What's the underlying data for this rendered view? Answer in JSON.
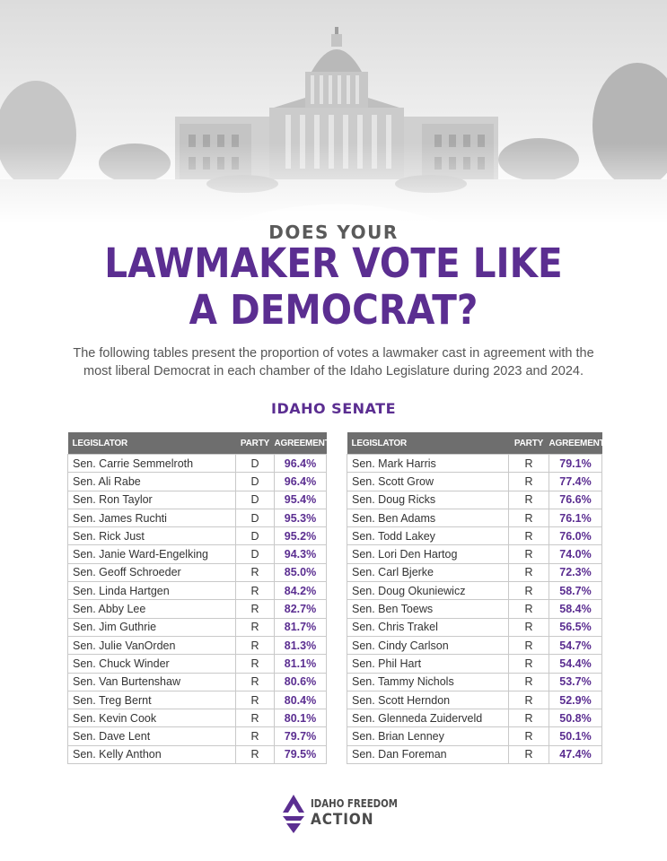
{
  "hero": {
    "image": "capitol-building-grayscale-photo"
  },
  "kicker": "DOES YOUR",
  "headline_lines": [
    "LAWMAKER VOTE LIKE",
    "A DEMOCRAT?"
  ],
  "intro_lines": [
    "The following tables present the proportion of votes a lawmaker cast in agreement with the",
    "most liberal Democrat in each chamber of the Idaho Legislature during 2023 and 2024."
  ],
  "chamber_title": "IDAHO SENATE",
  "colors": {
    "accent": "#5b2e91",
    "header_bg": "#6e6e6e",
    "text": "#333333"
  },
  "table_headers": {
    "legislator": "LEGISLATOR",
    "party": "PARTY",
    "agreement": "AGREEMENT"
  },
  "senate_left": [
    {
      "name": "Sen. Carrie Semmelroth",
      "party": "D",
      "agreement": "96.4%"
    },
    {
      "name": "Sen. Ali Rabe",
      "party": "D",
      "agreement": "96.4%"
    },
    {
      "name": "Sen. Ron Taylor",
      "party": "D",
      "agreement": "95.4%"
    },
    {
      "name": "Sen. James Ruchti",
      "party": "D",
      "agreement": "95.3%"
    },
    {
      "name": "Sen. Rick Just",
      "party": "D",
      "agreement": "95.2%"
    },
    {
      "name": "Sen. Janie Ward-Engelking",
      "party": "D",
      "agreement": "94.3%"
    },
    {
      "name": "Sen. Geoff Schroeder",
      "party": "R",
      "agreement": "85.0%"
    },
    {
      "name": "Sen. Linda Hartgen",
      "party": "R",
      "agreement": "84.2%"
    },
    {
      "name": "Sen. Abby Lee",
      "party": "R",
      "agreement": "82.7%"
    },
    {
      "name": "Sen. Jim Guthrie",
      "party": "R",
      "agreement": "81.7%"
    },
    {
      "name": "Sen. Julie VanOrden",
      "party": "R",
      "agreement": "81.3%"
    },
    {
      "name": "Sen. Chuck Winder",
      "party": "R",
      "agreement": "81.1%"
    },
    {
      "name": "Sen. Van Burtenshaw",
      "party": "R",
      "agreement": "80.6%"
    },
    {
      "name": "Sen. Treg Bernt",
      "party": "R",
      "agreement": "80.4%"
    },
    {
      "name": "Sen. Kevin Cook",
      "party": "R",
      "agreement": "80.1%"
    },
    {
      "name": "Sen. Dave Lent",
      "party": "R",
      "agreement": "79.7%"
    },
    {
      "name": "Sen. Kelly Anthon",
      "party": "R",
      "agreement": "79.5%"
    }
  ],
  "senate_right": [
    {
      "name": "Sen. Mark Harris",
      "party": "R",
      "agreement": "79.1%"
    },
    {
      "name": "Sen. Scott Grow",
      "party": "R",
      "agreement": "77.4%"
    },
    {
      "name": "Sen. Doug Ricks",
      "party": "R",
      "agreement": "76.6%"
    },
    {
      "name": "Sen. Ben Adams",
      "party": "R",
      "agreement": "76.1%"
    },
    {
      "name": "Sen. Todd Lakey",
      "party": "R",
      "agreement": "76.0%"
    },
    {
      "name": "Sen. Lori Den Hartog",
      "party": "R",
      "agreement": "74.0%"
    },
    {
      "name": "Sen. Carl Bjerke",
      "party": "R",
      "agreement": "72.3%"
    },
    {
      "name": "Sen. Doug Okuniewicz",
      "party": "R",
      "agreement": "58.7%"
    },
    {
      "name": "Sen. Ben Toews",
      "party": "R",
      "agreement": "58.4%"
    },
    {
      "name": "Sen. Chris Trakel",
      "party": "R",
      "agreement": "56.5%"
    },
    {
      "name": "Sen. Cindy Carlson",
      "party": "R",
      "agreement": "54.7%"
    },
    {
      "name": "Sen. Phil Hart",
      "party": "R",
      "agreement": "54.4%"
    },
    {
      "name": "Sen. Tammy Nichols",
      "party": "R",
      "agreement": "53.7%"
    },
    {
      "name": "Sen. Scott Herndon",
      "party": "R",
      "agreement": "52.9%"
    },
    {
      "name": "Sen. Glenneda Zuiderveld",
      "party": "R",
      "agreement": "50.8%"
    },
    {
      "name": "Sen. Brian Lenney",
      "party": "R",
      "agreement": "50.1%"
    },
    {
      "name": "Sen. Dan Foreman",
      "party": "R",
      "agreement": "47.4%"
    }
  ],
  "logo": {
    "line1": "IDAHO FREEDOM",
    "line2": "ACTION",
    "icon": "idaho-freedom-action-logo-icon"
  }
}
